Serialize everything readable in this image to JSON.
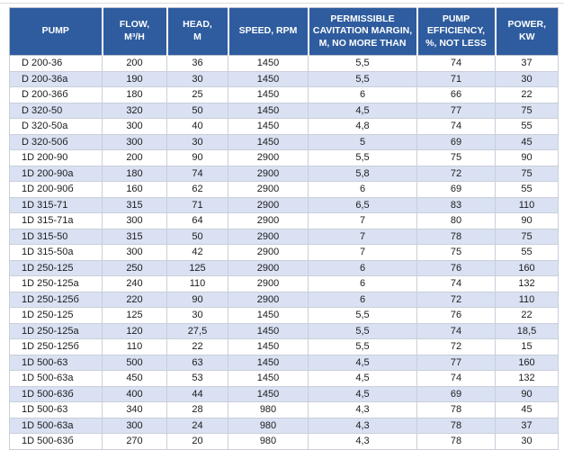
{
  "colors": {
    "header_bg": "#2E5C9E",
    "header_text": "#FFFFFF",
    "row_stripe": "#D9E1F2",
    "grid_line": "#C9CFDA",
    "outer_border": "#B9C0CC",
    "body_text": "#1C1C1E"
  },
  "table": {
    "columns": [
      {
        "id": "pump",
        "label": "PUMP"
      },
      {
        "id": "flow",
        "label": "FLOW,\nM³/H"
      },
      {
        "id": "head",
        "label": "HEAD,\nM"
      },
      {
        "id": "speed",
        "label": "SPEED, RPM"
      },
      {
        "id": "cavitation-margin",
        "label": "PERMISSIBLE\nCAVITATION MARGIN,\nM, NO MORE THAN"
      },
      {
        "id": "efficiency",
        "label": "PUMP\nEFFICIENCY,\n%, NOT LESS"
      },
      {
        "id": "power",
        "label": "POWER,\nKW"
      }
    ],
    "rows": [
      [
        "D 200-36",
        "200",
        "36",
        "1450",
        "5,5",
        "74",
        "37"
      ],
      [
        "D 200-36a",
        "190",
        "30",
        "1450",
        "5,5",
        "71",
        "30"
      ],
      [
        "D 200-36б",
        "180",
        "25",
        "1450",
        "6",
        "66",
        "22"
      ],
      [
        "D 320-50",
        "320",
        "50",
        "1450",
        "4,5",
        "77",
        "75"
      ],
      [
        "D 320-50a",
        "300",
        "40",
        "1450",
        "4,8",
        "74",
        "55"
      ],
      [
        "D 320-50б",
        "300",
        "30",
        "1450",
        "5",
        "69",
        "45"
      ],
      [
        "1D 200-90",
        "200",
        "90",
        "2900",
        "5,5",
        "75",
        "90"
      ],
      [
        "1D 200-90a",
        "180",
        "74",
        "2900",
        "5,8",
        "72",
        "75"
      ],
      [
        "1D 200-90б",
        "160",
        "62",
        "2900",
        "6",
        "69",
        "55"
      ],
      [
        "1D 315-71",
        "315",
        "71",
        "2900",
        "6,5",
        "83",
        "110"
      ],
      [
        "1D 315-71a",
        "300",
        "64",
        "2900",
        "7",
        "80",
        "90"
      ],
      [
        "1D 315-50",
        "315",
        "50",
        "2900",
        "7",
        "78",
        "75"
      ],
      [
        "1D 315-50a",
        "300",
        "42",
        "2900",
        "7",
        "75",
        "55"
      ],
      [
        "1D 250-125",
        "250",
        "125",
        "2900",
        "6",
        "76",
        "160"
      ],
      [
        "1D 250-125a",
        "240",
        "110",
        "2900",
        "6",
        "74",
        "132"
      ],
      [
        "1D 250-125б",
        "220",
        "90",
        "2900",
        "6",
        "72",
        "110"
      ],
      [
        "1D 250-125",
        "125",
        "30",
        "1450",
        "5,5",
        "76",
        "22"
      ],
      [
        "1D 250-125a",
        "120",
        "27,5",
        "1450",
        "5,5",
        "74",
        "18,5"
      ],
      [
        "1D 250-125б",
        "110",
        "22",
        "1450",
        "5,5",
        "72",
        "15"
      ],
      [
        "1D 500-63",
        "500",
        "63",
        "1450",
        "4,5",
        "77",
        "160"
      ],
      [
        "1D 500-63a",
        "450",
        "53",
        "1450",
        "4,5",
        "74",
        "132"
      ],
      [
        "1D 500-63б",
        "400",
        "44",
        "1450",
        "4,5",
        "69",
        "90"
      ],
      [
        "1D 500-63",
        "340",
        "28",
        "980",
        "4,3",
        "78",
        "45"
      ],
      [
        "1D 500-63a",
        "300",
        "24",
        "980",
        "4,3",
        "78",
        "37"
      ],
      [
        "1D 500-63б",
        "270",
        "20",
        "980",
        "4,3",
        "78",
        "30"
      ]
    ]
  }
}
